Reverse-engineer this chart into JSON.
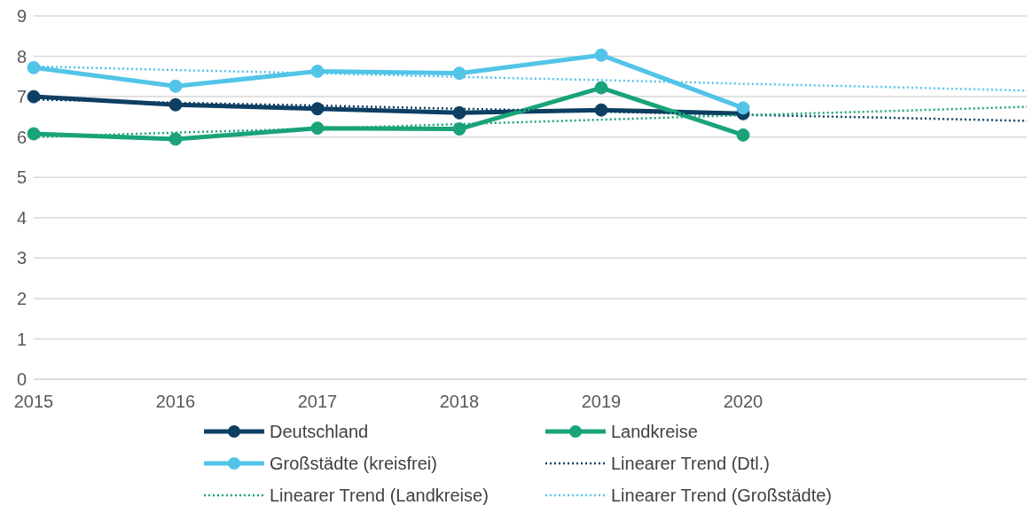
{
  "chart_data": {
    "type": "line",
    "categories": [
      "2015",
      "2016",
      "2017",
      "2018",
      "2019",
      "2020",
      null,
      null
    ],
    "series": [
      {
        "name": "Deutschland",
        "color": "#0e3f63",
        "values": [
          7.0,
          6.8,
          6.7,
          6.6,
          6.67,
          6.58,
          null,
          null
        ],
        "marker": "circle",
        "line_style": "solid"
      },
      {
        "name": "Landkreise",
        "color": "#1aa37a",
        "values": [
          6.08,
          5.95,
          6.22,
          6.2,
          7.22,
          6.05,
          null,
          null
        ],
        "marker": "circle",
        "line_style": "solid"
      },
      {
        "name": "Großstädte (kreisfrei)",
        "color": "#52c4e8",
        "values": [
          7.72,
          7.26,
          7.63,
          7.58,
          8.03,
          6.72,
          null,
          null
        ],
        "marker": "circle",
        "line_style": "solid"
      },
      {
        "name": "Linearer Trend (Dtl.)",
        "color": "#0e3f63",
        "values": [
          6.93,
          6.85,
          6.78,
          6.7,
          6.63,
          6.55,
          6.48,
          6.4
        ],
        "marker": "none",
        "line_style": "dotted"
      },
      {
        "name": "Linearer Trend (Landkreise)",
        "color": "#1aa37a",
        "values": [
          6.0,
          6.11,
          6.21,
          6.32,
          6.43,
          6.54,
          6.64,
          6.75
        ],
        "marker": "none",
        "line_style": "dotted"
      },
      {
        "name": "Linearer Trend (Großstädte)",
        "color": "#52c4e8",
        "values": [
          7.75,
          7.66,
          7.58,
          7.49,
          7.41,
          7.32,
          7.24,
          7.15
        ],
        "marker": "none",
        "line_style": "dotted"
      }
    ],
    "ylim": [
      0,
      9
    ],
    "yticks": [
      0,
      1,
      2,
      3,
      4,
      5,
      6,
      7,
      8,
      9
    ],
    "grid": "y",
    "legend": "bottom"
  }
}
